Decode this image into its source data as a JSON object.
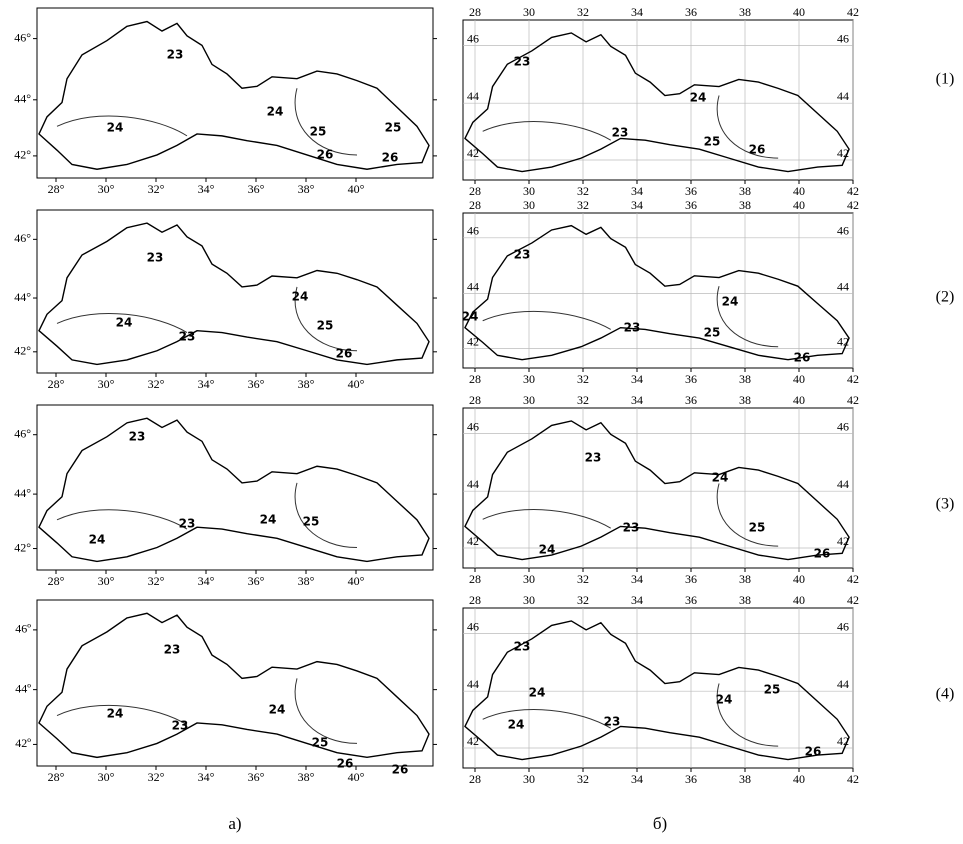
{
  "panels": [
    {
      "label": "а)",
      "maps": [
        {
          "x_ticks": [
            "28°",
            "30°",
            "32°",
            "34°",
            "36°",
            "38°",
            "40°"
          ],
          "y_ticks": [
            "46°",
            "44°",
            "42°"
          ],
          "contours": [
            "23",
            "24",
            "24",
            "25",
            "26",
            "26",
            "25"
          ]
        },
        {
          "x_ticks": [
            "28°",
            "30°",
            "32°",
            "34°",
            "36°",
            "38°",
            "40°"
          ],
          "y_ticks": [
            "46°",
            "44°",
            "42°"
          ],
          "contours": [
            "23",
            "24",
            "23",
            "24",
            "25",
            "26"
          ]
        },
        {
          "x_ticks": [
            "28°",
            "30°",
            "32°",
            "34°",
            "36°",
            "38°",
            "40°"
          ],
          "y_ticks": [
            "46°",
            "44°",
            "42°"
          ],
          "contours": [
            "23",
            "24",
            "23",
            "24",
            "25"
          ]
        },
        {
          "x_ticks": [
            "28°",
            "30°",
            "32°",
            "34°",
            "36°",
            "38°",
            "40°"
          ],
          "y_ticks": [
            "46º",
            "44º",
            "42º"
          ],
          "contours": [
            "23",
            "24",
            "23",
            "24",
            "25",
            "26",
            "26"
          ]
        }
      ]
    },
    {
      "label": "б)",
      "maps": [
        {
          "x_ticks": [
            "28",
            "30",
            "32",
            "34",
            "36",
            "38",
            "40",
            "42"
          ],
          "y_ticks": [
            "46",
            "44",
            "42"
          ],
          "contours": [
            "23",
            "24",
            "23",
            "25",
            "26"
          ]
        },
        {
          "x_ticks": [
            "28",
            "30",
            "32",
            "34",
            "36",
            "38",
            "40",
            "42"
          ],
          "y_ticks": [
            "46",
            "44",
            "42"
          ],
          "contours": [
            "23",
            "24",
            "23",
            "24",
            "25",
            "26"
          ]
        },
        {
          "x_ticks": [
            "28",
            "30",
            "32",
            "34",
            "36",
            "38",
            "40",
            "42"
          ],
          "y_ticks": [
            "46",
            "44",
            "42"
          ],
          "contours": [
            "23",
            "24",
            "23",
            "25",
            "24",
            "26"
          ]
        },
        {
          "x_ticks": [
            "28",
            "30",
            "32",
            "34",
            "36",
            "38",
            "40",
            "42"
          ],
          "y_ticks": [
            "46",
            "44",
            "42"
          ],
          "contours": [
            "23",
            "24",
            "24",
            "23",
            "24",
            "25",
            "26"
          ]
        }
      ]
    }
  ],
  "rows": [
    "(1)",
    "(2)",
    "(3)",
    "(4)"
  ]
}
